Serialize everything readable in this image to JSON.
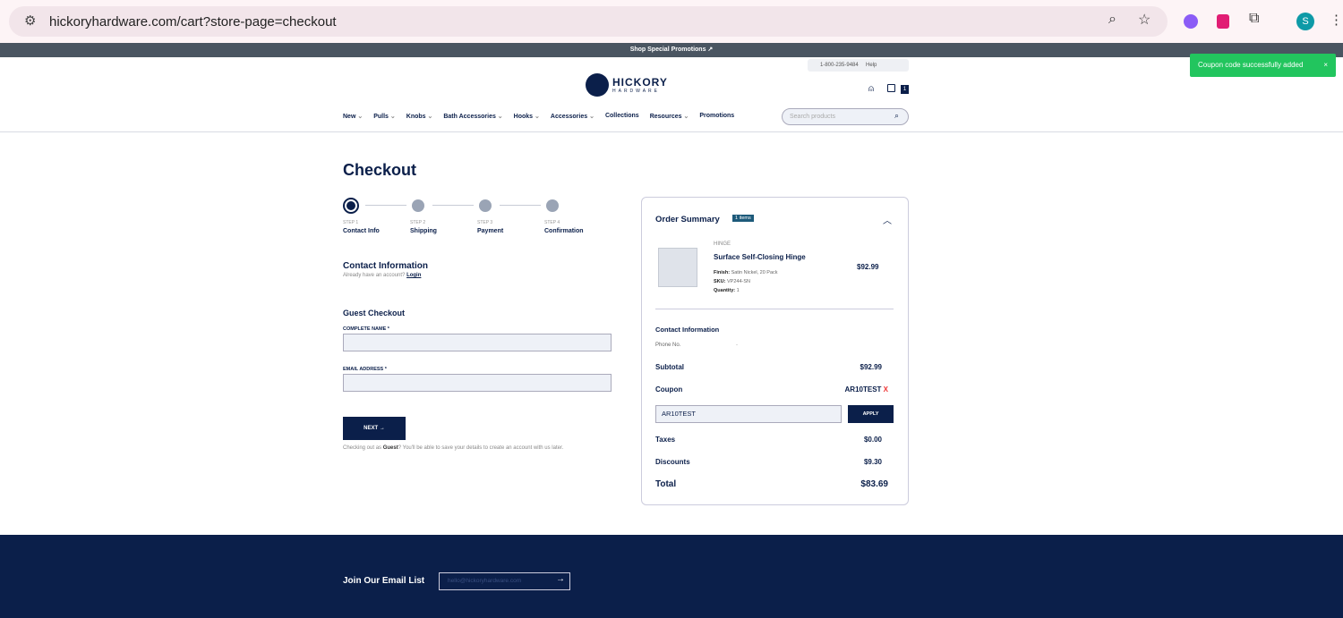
{
  "browser": {
    "url": "hickoryhardware.com/cart?store-page=checkout",
    "profile_initial": "S"
  },
  "promo_bar": "Shop Special Promotions ↗",
  "utility": {
    "phone": "1-800-235-9484",
    "help": "Help"
  },
  "logo": {
    "line1": "HICKORY",
    "line2": "HARDWARE"
  },
  "cart_count": "1",
  "nav": [
    "New",
    "Pulls",
    "Knobs",
    "Bath Accessories",
    "Hooks",
    "Accessories",
    "Collections",
    "Resources",
    "Promotions"
  ],
  "nav_dropdown": [
    true,
    true,
    true,
    true,
    true,
    true,
    false,
    true,
    false
  ],
  "search_placeholder": "Search products",
  "toast": {
    "text": "Coupon code successfully added",
    "close": "×"
  },
  "checkout": {
    "title": "Checkout",
    "steps": [
      {
        "num": "STEP 1",
        "name": "Contact Info"
      },
      {
        "num": "STEP 2",
        "name": "Shipping"
      },
      {
        "num": "STEP 3",
        "name": "Payment"
      },
      {
        "num": "STEP 4",
        "name": "Confirmation"
      }
    ],
    "contact_title": "Contact Information",
    "have_account": "Already have an account?",
    "login": "Login",
    "guest_title": "Guest Checkout",
    "name_label": "COMPLETE NAME *",
    "email_label": "EMAIL ADDRESS *",
    "next": "NEXT →",
    "guest_note_1": "Checking out as ",
    "guest_bold": "Guest",
    "guest_note_2": "? You'll be able to save your details to create an account with us later."
  },
  "summary": {
    "title": "Order Summary",
    "badge": "1 items",
    "item": {
      "category": "HINGE",
      "name": "Surface Self-Closing Hinge",
      "finish_label": "Finish:",
      "finish": "Satin Nickel, 20 Pack",
      "sku_label": "SKU:",
      "sku": "VP244-SN",
      "qty_label": "Quantity:",
      "qty": "1",
      "price": "$92.99"
    },
    "contact_title": "Contact Information",
    "phone_label": "Phone No.",
    "phone_value": "-",
    "subtotal_label": "Subtotal",
    "subtotal": "$92.99",
    "coupon_label": "Coupon",
    "coupon_code": "AR10TEST",
    "coupon_remove": "X",
    "coupon_input": "AR10TEST",
    "apply": "APPLY",
    "taxes_label": "Taxes",
    "taxes": "$0.00",
    "discounts_label": "Discounts",
    "discounts": "$9.30",
    "total_label": "Total",
    "total": "$83.69"
  },
  "footer": {
    "email_title": "Join Our Email List",
    "email_placeholder": "hello@hickoryhardware.com"
  }
}
